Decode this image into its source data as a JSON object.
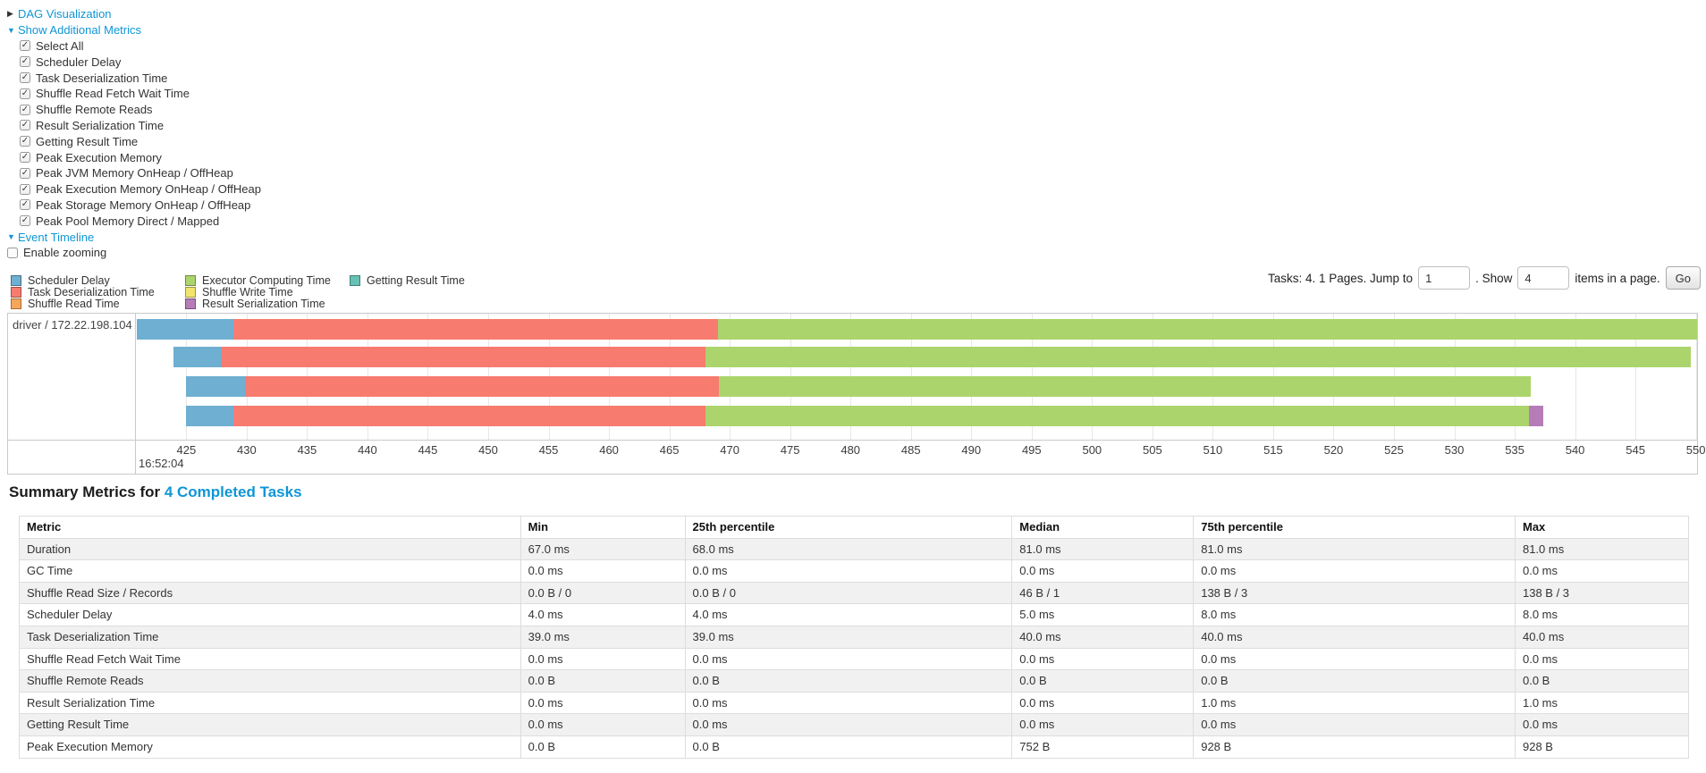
{
  "colors": {
    "link": "#0f96d6",
    "scheduler_delay": "#6fafd2",
    "task_deserialization": "#f77b6f",
    "shuffle_read": "#f6a65a",
    "executor_computing": "#abd56c",
    "shuffle_write": "#f2e56e",
    "result_serialization": "#b57cb8",
    "getting_result": "#65c2b4"
  },
  "sections": {
    "dag": "DAG Visualization",
    "additional_metrics": "Show Additional Metrics",
    "event_timeline": "Event Timeline"
  },
  "metric_checkboxes": [
    {
      "label": "Select All",
      "checked": true
    },
    {
      "label": "Scheduler Delay",
      "checked": true
    },
    {
      "label": "Task Deserialization Time",
      "checked": true
    },
    {
      "label": "Shuffle Read Fetch Wait Time",
      "checked": true
    },
    {
      "label": "Shuffle Remote Reads",
      "checked": true
    },
    {
      "label": "Result Serialization Time",
      "checked": true
    },
    {
      "label": "Getting Result Time",
      "checked": true
    },
    {
      "label": "Peak Execution Memory",
      "checked": true
    },
    {
      "label": "Peak JVM Memory OnHeap / OffHeap",
      "checked": true
    },
    {
      "label": "Peak Execution Memory OnHeap / OffHeap",
      "checked": true
    },
    {
      "label": "Peak Storage Memory OnHeap / OffHeap",
      "checked": true
    },
    {
      "label": "Peak Pool Memory Direct / Mapped",
      "checked": true
    }
  ],
  "enable_zooming": {
    "label": "Enable zooming",
    "checked": false
  },
  "pagination": {
    "prefix": "Tasks: 4. 1 Pages. Jump to",
    "jump_value": "1",
    "mid": ". Show",
    "show_value": "4",
    "suffix": "items in a page.",
    "go": "Go"
  },
  "chart_data": {
    "type": "timeline",
    "group_label": "driver / 172.22.198.104",
    "time_label": "16:52:04",
    "x_domain": [
      420.9,
      550.1
    ],
    "ticks": {
      "start": 425,
      "end": 550,
      "step": 5
    },
    "legend_columns": [
      [
        {
          "label": "Scheduler Delay",
          "color_key": "scheduler_delay"
        },
        {
          "label": "Task Deserialization Time",
          "color_key": "task_deserialization"
        },
        {
          "label": "Shuffle Read Time",
          "color_key": "shuffle_read"
        }
      ],
      [
        {
          "label": "Executor Computing Time",
          "color_key": "executor_computing"
        },
        {
          "label": "Shuffle Write Time",
          "color_key": "shuffle_write"
        },
        {
          "label": "Result Serialization Time",
          "color_key": "result_serialization"
        }
      ],
      [
        {
          "label": "Getting Result Time",
          "color_key": "getting_result"
        }
      ]
    ],
    "tasks": [
      {
        "segments": [
          {
            "metric": "scheduler_delay",
            "from": 420.9,
            "to": 428.9
          },
          {
            "metric": "task_deserialization",
            "from": 428.9,
            "to": 469.0
          },
          {
            "metric": "executor_computing",
            "from": 469.0,
            "to": 550.1
          }
        ]
      },
      {
        "segments": [
          {
            "metric": "scheduler_delay",
            "from": 423.9,
            "to": 427.9
          },
          {
            "metric": "task_deserialization",
            "from": 427.9,
            "to": 468.0
          },
          {
            "metric": "executor_computing",
            "from": 468.0,
            "to": 549.6
          }
        ]
      },
      {
        "segments": [
          {
            "metric": "scheduler_delay",
            "from": 425.0,
            "to": 429.9
          },
          {
            "metric": "task_deserialization",
            "from": 429.9,
            "to": 469.1
          },
          {
            "metric": "executor_computing",
            "from": 469.1,
            "to": 536.3
          }
        ]
      },
      {
        "segments": [
          {
            "metric": "scheduler_delay",
            "from": 425.0,
            "to": 428.9
          },
          {
            "metric": "task_deserialization",
            "from": 428.9,
            "to": 468.0
          },
          {
            "metric": "executor_computing",
            "from": 468.0,
            "to": 536.2
          },
          {
            "metric": "result_serialization",
            "from": 536.2,
            "to": 537.4
          }
        ]
      }
    ]
  },
  "summary": {
    "title_prefix": "Summary Metrics for ",
    "title_link": "4 Completed Tasks",
    "table": {
      "headers": [
        "Metric",
        "Min",
        "25th percentile",
        "Median",
        "75th percentile",
        "Max"
      ],
      "rows": [
        [
          "Duration",
          "67.0 ms",
          "68.0 ms",
          "81.0 ms",
          "81.0 ms",
          "81.0 ms"
        ],
        [
          "GC Time",
          "0.0 ms",
          "0.0 ms",
          "0.0 ms",
          "0.0 ms",
          "0.0 ms"
        ],
        [
          "Shuffle Read Size / Records",
          "0.0 B / 0",
          "0.0 B / 0",
          "46 B / 1",
          "138 B / 3",
          "138 B / 3"
        ],
        [
          "Scheduler Delay",
          "4.0 ms",
          "4.0 ms",
          "5.0 ms",
          "8.0 ms",
          "8.0 ms"
        ],
        [
          "Task Deserialization Time",
          "39.0 ms",
          "39.0 ms",
          "40.0 ms",
          "40.0 ms",
          "40.0 ms"
        ],
        [
          "Shuffle Read Fetch Wait Time",
          "0.0 ms",
          "0.0 ms",
          "0.0 ms",
          "0.0 ms",
          "0.0 ms"
        ],
        [
          "Shuffle Remote Reads",
          "0.0 B",
          "0.0 B",
          "0.0 B",
          "0.0 B",
          "0.0 B"
        ],
        [
          "Result Serialization Time",
          "0.0 ms",
          "0.0 ms",
          "0.0 ms",
          "1.0 ms",
          "1.0 ms"
        ],
        [
          "Getting Result Time",
          "0.0 ms",
          "0.0 ms",
          "0.0 ms",
          "0.0 ms",
          "0.0 ms"
        ],
        [
          "Peak Execution Memory",
          "0.0 B",
          "0.0 B",
          "752 B",
          "928 B",
          "928 B"
        ]
      ]
    }
  }
}
